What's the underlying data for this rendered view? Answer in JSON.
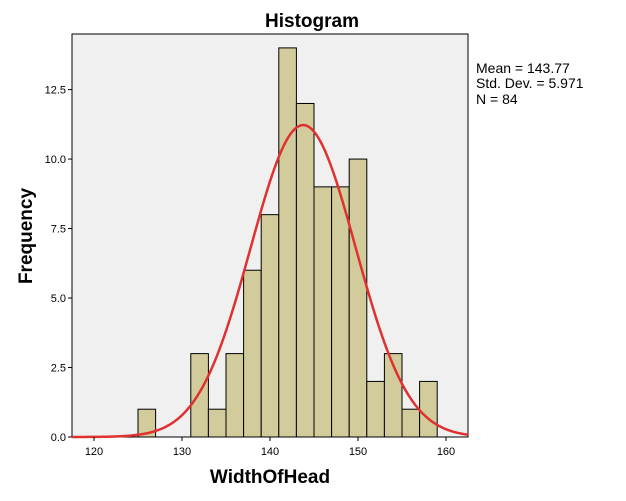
{
  "chart_data": {
    "type": "histogram",
    "title": "Histogram",
    "xlabel": "WidthOfHead",
    "ylabel": "Frequency",
    "xlim": [
      117.5,
      162.5
    ],
    "ylim": [
      0,
      14.5
    ],
    "x_ticks": [
      120,
      130,
      140,
      150,
      160
    ],
    "y_ticks": [
      0.0,
      2.5,
      5.0,
      7.5,
      10.0,
      12.5
    ],
    "y_tick_labels": [
      "0.0",
      "2.5",
      "5.0",
      "7.5",
      "10.0",
      "12.5"
    ],
    "bin_width": 2,
    "bins": [
      {
        "x0": 125,
        "count": 1
      },
      {
        "x0": 131,
        "count": 3
      },
      {
        "x0": 133,
        "count": 1
      },
      {
        "x0": 135,
        "count": 3
      },
      {
        "x0": 137,
        "count": 6
      },
      {
        "x0": 139,
        "count": 8
      },
      {
        "x0": 141,
        "count": 14
      },
      {
        "x0": 143,
        "count": 12
      },
      {
        "x0": 145,
        "count": 9
      },
      {
        "x0": 147,
        "count": 9
      },
      {
        "x0": 149,
        "count": 10
      },
      {
        "x0": 151,
        "count": 2
      },
      {
        "x0": 153,
        "count": 3
      },
      {
        "x0": 155,
        "count": 1
      },
      {
        "x0": 157,
        "count": 2
      }
    ],
    "normal_curve": {
      "mean": 143.77,
      "sd": 5.971,
      "n": 84,
      "color": "#e03030"
    },
    "stats": [
      "Mean = 143.77",
      "Std. Dev. = 5.971",
      "N = 84"
    ],
    "colors": {
      "bar_fill": "#d2cc9c",
      "bar_stroke": "#000000",
      "plot_bg": "#f0f0f0"
    },
    "grid": false
  }
}
